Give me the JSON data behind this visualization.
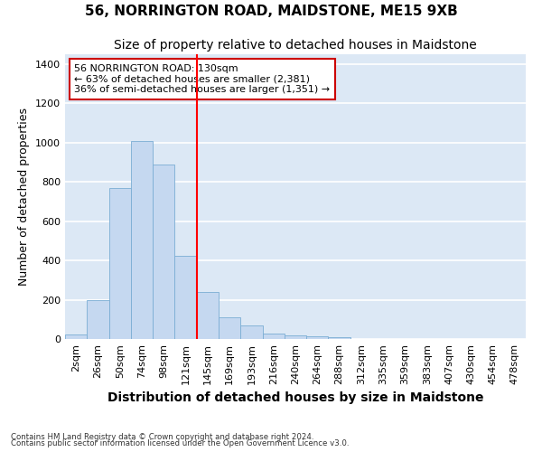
{
  "title": "56, NORRINGTON ROAD, MAIDSTONE, ME15 9XB",
  "subtitle": "Size of property relative to detached houses in Maidstone",
  "xlabel": "Distribution of detached houses by size in Maidstone",
  "ylabel": "Number of detached properties",
  "footnote1": "Contains HM Land Registry data © Crown copyright and database right 2024.",
  "footnote2": "Contains public sector information licensed under the Open Government Licence v3.0.",
  "bar_labels": [
    "2sqm",
    "26sqm",
    "50sqm",
    "74sqm",
    "98sqm",
    "121sqm",
    "145sqm",
    "169sqm",
    "193sqm",
    "216sqm",
    "240sqm",
    "264sqm",
    "288sqm",
    "312sqm",
    "335sqm",
    "359sqm",
    "383sqm",
    "407sqm",
    "430sqm",
    "454sqm",
    "478sqm"
  ],
  "bar_heights": [
    25,
    200,
    770,
    1010,
    890,
    425,
    240,
    110,
    70,
    28,
    20,
    15,
    10,
    0,
    0,
    0,
    0,
    0,
    0,
    0,
    0
  ],
  "bar_color": "#c5d8f0",
  "bar_edge_color": "#7aadd4",
  "vline_x": 5.5,
  "vline_color": "red",
  "annotation_text": "56 NORRINGTON ROAD: 130sqm\n← 63% of detached houses are smaller (2,381)\n36% of semi-detached houses are larger (1,351) →",
  "annotation_box_facecolor": "white",
  "annotation_box_edgecolor": "#cc0000",
  "ylim": [
    0,
    1450
  ],
  "yticks": [
    0,
    200,
    400,
    600,
    800,
    1000,
    1200,
    1400
  ],
  "bg_color": "#dce8f5",
  "grid_color": "white",
  "title_fontsize": 11,
  "subtitle_fontsize": 10,
  "xlabel_fontsize": 10,
  "ylabel_fontsize": 9,
  "tick_fontsize": 8,
  "annot_fontsize": 8
}
